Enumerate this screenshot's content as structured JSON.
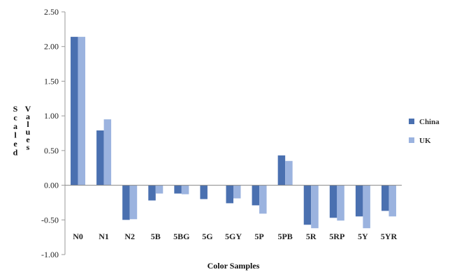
{
  "chart_data": {
    "type": "bar",
    "xlabel": "Color Samples",
    "ylabel": "Scaled Values",
    "ylabel_words": [
      "Scaled",
      "Values"
    ],
    "ylim": [
      -1.0,
      2.5
    ],
    "yticks": [
      -1.0,
      -0.5,
      0.0,
      0.5,
      1.0,
      1.5,
      2.0,
      2.5
    ],
    "ytick_labels": [
      "-1.00",
      "-0.50",
      "0.00",
      "0.50",
      "1.00",
      "1.50",
      "2.00",
      "2.50"
    ],
    "grid": false,
    "legend_position": "right",
    "categories": [
      "N0",
      "N1",
      "N2",
      "5B",
      "5BG",
      "5G",
      "5GY",
      "5P",
      "5PB",
      "5R",
      "5RP",
      "5Y",
      "5YR"
    ],
    "series": [
      {
        "name": "China",
        "color": "#4a70b0",
        "values": [
          2.14,
          0.79,
          -0.5,
          -0.22,
          -0.12,
          -0.2,
          -0.26,
          -0.29,
          0.43,
          -0.57,
          -0.47,
          -0.45,
          -0.37
        ]
      },
      {
        "name": "UK",
        "color": "#9bb3df",
        "values": [
          2.14,
          0.95,
          -0.49,
          -0.12,
          -0.13,
          0.0,
          -0.19,
          -0.41,
          0.35,
          -0.62,
          -0.51,
          -0.62,
          -0.45
        ]
      }
    ]
  }
}
